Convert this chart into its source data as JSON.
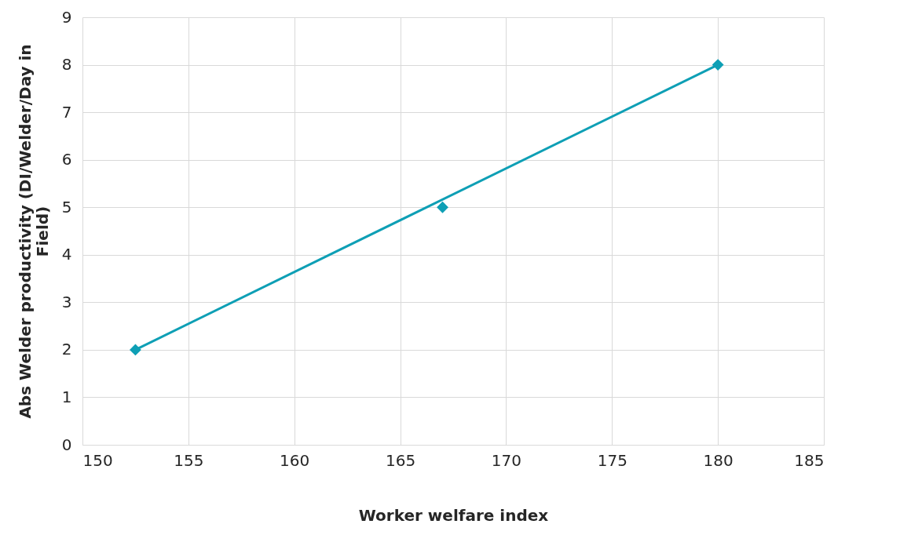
{
  "chart_data": {
    "type": "scatter",
    "xlabel": "Worker welfare index",
    "ylabel": "Abs Welder productivity (DI/Welder/Day in Field)",
    "xlim": [
      150,
      185
    ],
    "xticks": [
      150,
      155,
      160,
      165,
      170,
      175,
      180,
      185
    ],
    "ylim": [
      0,
      9
    ],
    "yticks": [
      0,
      1,
      2,
      3,
      4,
      5,
      6,
      7,
      8,
      9
    ],
    "grid": true,
    "series": [
      {
        "type": "line",
        "color": "#0e9fb5",
        "x": [
          152.5,
          180
        ],
        "values": [
          2,
          8
        ],
        "marker": "none",
        "line_style": "solid"
      },
      {
        "color": "#0e9fb5",
        "x": [
          152.5,
          167,
          180
        ],
        "values": [
          2,
          5,
          8
        ],
        "marker": "diamond"
      }
    ]
  }
}
